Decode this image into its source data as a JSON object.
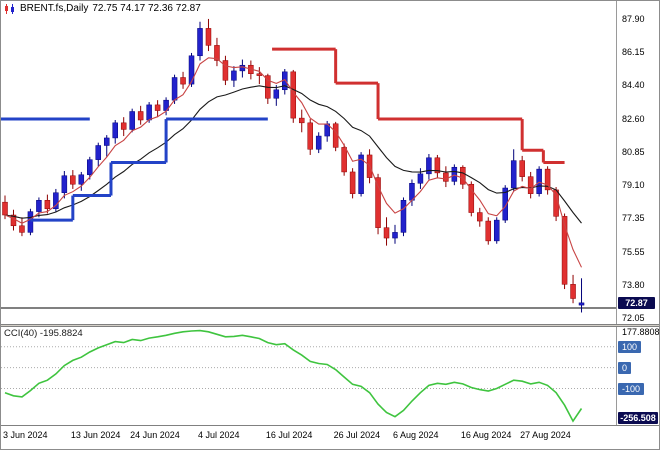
{
  "header": {
    "symbol_title": "BRENT.fs,Daily",
    "ohlc": "72.75 74.17 72.36 72.87"
  },
  "colors": {
    "bull": "#2222CC",
    "bull_dark": "#00007A",
    "bear": "#E03030",
    "bear_dark": "#8E0000",
    "ma_fast": "#C84444",
    "ma_slow": "#1A1A1A",
    "trend_up": "#2343C7",
    "trend_down": "#D03030",
    "cci_line": "#3FC43F",
    "level_tag_bg": "#3A68B0",
    "price_tag_bg": "#0A0A50",
    "grid_dot": "#ABABAB",
    "hline": "#000000"
  },
  "price_scale": {
    "labels": [
      {
        "text": "87.90",
        "value": 87.9
      },
      {
        "text": "86.15",
        "value": 86.15
      },
      {
        "text": "84.40",
        "value": 84.4
      },
      {
        "text": "82.60",
        "value": 82.6
      },
      {
        "text": "80.85",
        "value": 80.85
      },
      {
        "text": "79.10",
        "value": 79.1
      },
      {
        "text": "77.35",
        "value": 77.35
      },
      {
        "text": "75.55",
        "value": 75.55
      },
      {
        "text": "73.80",
        "value": 73.8
      },
      {
        "text": "72.05",
        "value": 72.05
      }
    ],
    "current": {
      "text": "72.87",
      "value": 72.87
    }
  },
  "chart_data": {
    "type": "candlestick",
    "title": "BRENT.fs Daily chart with trend-stop lines, two moving averages and CCI(40)",
    "price_range": {
      "min": 71.75,
      "max": 88.85
    },
    "ma_fast_period": 5,
    "ma_slow_period": 16,
    "hline_price": 72.6,
    "candles": [
      [
        78.2,
        78.55,
        77.3,
        77.52
      ],
      [
        77.52,
        77.8,
        76.7,
        76.95
      ],
      [
        76.95,
        77.4,
        76.4,
        76.6
      ],
      [
        76.6,
        77.85,
        76.45,
        77.7
      ],
      [
        77.7,
        78.45,
        77.4,
        78.3
      ],
      [
        78.3,
        78.6,
        77.6,
        77.85
      ],
      [
        77.85,
        78.9,
        77.7,
        78.7
      ],
      [
        78.7,
        79.85,
        78.4,
        79.6
      ],
      [
        79.6,
        79.9,
        78.9,
        79.15
      ],
      [
        79.15,
        79.8,
        78.8,
        79.65
      ],
      [
        79.65,
        80.6,
        79.4,
        80.45
      ],
      [
        80.45,
        81.35,
        80.1,
        81.2
      ],
      [
        81.2,
        81.75,
        80.6,
        81.6
      ],
      [
        81.6,
        82.55,
        81.3,
        82.4
      ],
      [
        82.4,
        82.7,
        81.7,
        82.05
      ],
      [
        82.05,
        83.15,
        81.9,
        83.0
      ],
      [
        83.0,
        83.3,
        82.3,
        82.55
      ],
      [
        82.55,
        83.5,
        82.4,
        83.35
      ],
      [
        83.35,
        83.6,
        82.7,
        83.05
      ],
      [
        83.05,
        83.75,
        82.8,
        83.6
      ],
      [
        83.6,
        84.95,
        83.4,
        84.8
      ],
      [
        84.8,
        85.1,
        84.2,
        84.45
      ],
      [
        84.45,
        86.1,
        84.3,
        85.95
      ],
      [
        85.95,
        87.75,
        85.7,
        87.4
      ],
      [
        87.4,
        87.9,
        86.2,
        86.5
      ],
      [
        86.5,
        86.9,
        85.4,
        85.7
      ],
      [
        85.7,
        85.95,
        84.4,
        84.65
      ],
      [
        84.65,
        85.4,
        84.3,
        85.15
      ],
      [
        85.15,
        85.75,
        84.8,
        85.45
      ],
      [
        85.45,
        85.7,
        84.7,
        85.0
      ],
      [
        85.0,
        85.35,
        84.45,
        84.9
      ],
      [
        84.9,
        85.0,
        83.4,
        83.7
      ],
      [
        83.7,
        84.4,
        83.3,
        84.15
      ],
      [
        84.15,
        85.25,
        83.9,
        85.1
      ],
      [
        85.1,
        85.2,
        82.4,
        82.65
      ],
      [
        82.65,
        83.1,
        81.9,
        82.4
      ],
      [
        82.4,
        82.6,
        80.7,
        81.0
      ],
      [
        81.0,
        81.9,
        80.8,
        81.7
      ],
      [
        81.7,
        82.5,
        81.4,
        82.35
      ],
      [
        82.35,
        82.45,
        80.9,
        81.1
      ],
      [
        81.1,
        81.3,
        79.6,
        79.8
      ],
      [
        79.8,
        80.0,
        78.4,
        78.65
      ],
      [
        78.65,
        80.85,
        78.5,
        80.7
      ],
      [
        80.7,
        81.0,
        79.2,
        79.5
      ],
      [
        79.5,
        79.7,
        76.5,
        76.85
      ],
      [
        76.85,
        77.4,
        75.9,
        76.3
      ],
      [
        76.3,
        77.0,
        76.0,
        76.6
      ],
      [
        76.6,
        78.45,
        76.4,
        78.3
      ],
      [
        78.3,
        79.4,
        78.0,
        79.2
      ],
      [
        79.2,
        80.0,
        78.9,
        79.7
      ],
      [
        79.7,
        80.75,
        79.4,
        80.55
      ],
      [
        80.55,
        80.7,
        79.5,
        79.75
      ],
      [
        79.75,
        80.1,
        79.0,
        79.3
      ],
      [
        79.3,
        80.2,
        79.1,
        80.05
      ],
      [
        80.05,
        80.15,
        78.9,
        79.15
      ],
      [
        79.15,
        79.3,
        77.45,
        77.65
      ],
      [
        77.65,
        77.9,
        76.9,
        77.2
      ],
      [
        77.2,
        77.4,
        75.95,
        76.15
      ],
      [
        76.15,
        77.4,
        76.0,
        77.25
      ],
      [
        77.25,
        79.1,
        77.1,
        78.95
      ],
      [
        78.95,
        81.0,
        78.8,
        80.4
      ],
      [
        80.4,
        80.65,
        79.3,
        79.55
      ],
      [
        79.55,
        79.8,
        78.4,
        78.65
      ],
      [
        78.65,
        80.1,
        78.5,
        79.95
      ],
      [
        79.95,
        80.1,
        78.6,
        78.85
      ],
      [
        78.85,
        79.0,
        77.2,
        77.45
      ],
      [
        77.45,
        77.6,
        73.6,
        73.85
      ],
      [
        73.85,
        74.35,
        72.85,
        73.1
      ],
      [
        72.75,
        74.17,
        72.36,
        72.87
      ]
    ],
    "trend_up_segments": [
      [
        -0.5,
        10,
        82.6
      ],
      [
        3,
        8,
        77.25
      ],
      [
        8,
        12.5,
        78.55
      ],
      [
        12.5,
        19,
        80.3
      ],
      [
        19,
        31,
        82.6
      ]
    ],
    "trend_down_segments": [
      [
        31.5,
        39,
        86.3
      ],
      [
        39,
        44,
        84.5
      ],
      [
        44,
        61,
        82.6
      ],
      [
        61,
        63.5,
        80.95
      ],
      [
        63.5,
        66,
        80.3
      ]
    ],
    "x_labels": [
      {
        "idx": 0,
        "text": "3 Jun 2024"
      },
      {
        "idx": 8,
        "text": "13 Jun 2024"
      },
      {
        "idx": 15,
        "text": "24 Jun 2024"
      },
      {
        "idx": 23,
        "text": "4 Jul 2024"
      },
      {
        "idx": 31,
        "text": "16 Jul 2024"
      },
      {
        "idx": 39,
        "text": "26 Jul 2024"
      },
      {
        "idx": 46,
        "text": "6 Aug 2024"
      },
      {
        "idx": 54,
        "text": "16 Aug 2024"
      },
      {
        "idx": 61,
        "text": "27 Aug 2024"
      }
    ],
    "indicator": {
      "name": "CCI(40)",
      "value_label": "-195.8824",
      "range": {
        "min": -275,
        "max": 195
      },
      "scale_max": {
        "text": "177.8808",
        "value": 177.88
      },
      "scale_min": {
        "text": "-256.508",
        "value": -256.51
      },
      "levels": [
        {
          "text": "100",
          "value": 100
        },
        {
          "text": "0",
          "value": 0
        },
        {
          "text": "-100",
          "value": -100
        }
      ],
      "values": [
        -120,
        -135,
        -140,
        -110,
        -75,
        -60,
        -30,
        10,
        35,
        50,
        75,
        95,
        110,
        125,
        120,
        135,
        130,
        142,
        148,
        155,
        165,
        172,
        176,
        177.88,
        172,
        160,
        148,
        150,
        155,
        148,
        140,
        120,
        110,
        115,
        85,
        60,
        30,
        20,
        15,
        -10,
        -45,
        -80,
        -90,
        -120,
        -175,
        -215,
        -235,
        -205,
        -160,
        -120,
        -85,
        -75,
        -80,
        -70,
        -78,
        -95,
        -105,
        -112,
        -100,
        -80,
        -60,
        -65,
        -78,
        -70,
        -85,
        -120,
        -180,
        -256.51,
        -195.88
      ]
    }
  }
}
